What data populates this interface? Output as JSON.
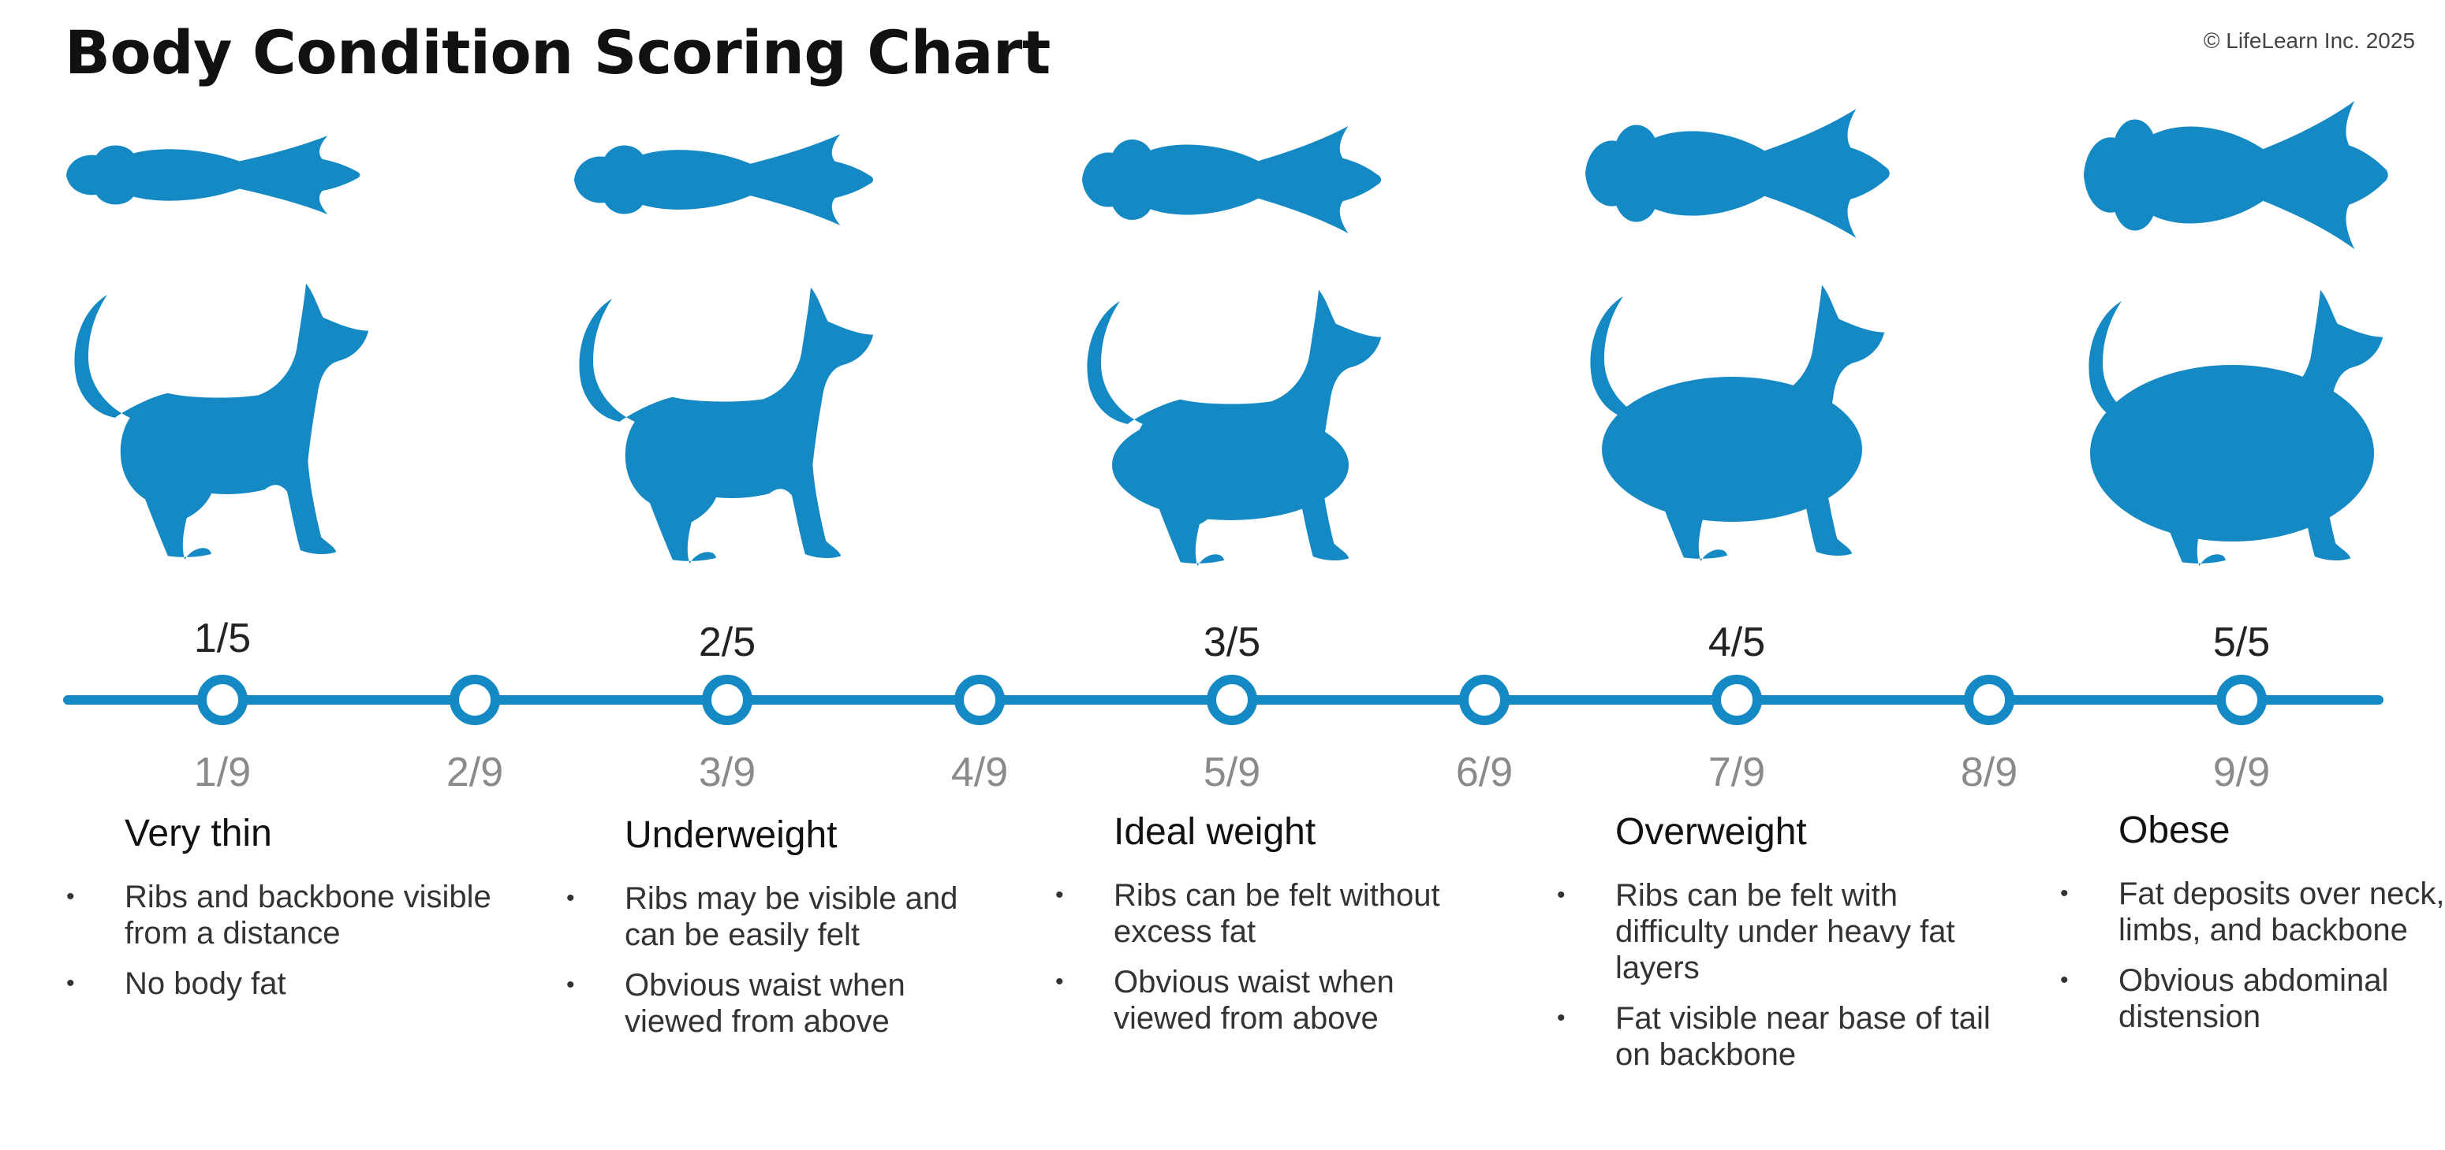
{
  "title": "Body Condition Scoring Chart",
  "copyright": "© LifeLearn Inc. 2025",
  "colors": {
    "accent": "#1589c4",
    "score_text": "#222222",
    "muted_score": "#8a8a8a"
  },
  "scale": {
    "five_point": [
      "1/5",
      "2/5",
      "3/5",
      "4/5",
      "5/5"
    ],
    "nine_point": [
      "1/9",
      "2/9",
      "3/9",
      "4/9",
      "5/9",
      "6/9",
      "7/9",
      "8/9",
      "9/9"
    ]
  },
  "categories": [
    {
      "label": "Very thin",
      "bullets": [
        "Ribs and backbone visible from a distance",
        "No body fat"
      ]
    },
    {
      "label": "Underweight",
      "bullets": [
        "Ribs may be visible and can be easily felt",
        "Obvious waist when viewed from above"
      ]
    },
    {
      "label": "Ideal weight",
      "bullets": [
        "Ribs can be felt without excess fat",
        "Obvious waist when viewed from above"
      ]
    },
    {
      "label": "Overweight",
      "bullets": [
        "Ribs can be felt with difficulty under heavy fat layers",
        "Fat visible near base of tail on backbone"
      ]
    },
    {
      "label": "Obese",
      "bullets": [
        "Fat deposits over neck, limbs, and backbone",
        "Obvious abdominal distension"
      ]
    }
  ],
  "icons": [
    "dog-top-view-icon",
    "dog-side-view-icon"
  ]
}
